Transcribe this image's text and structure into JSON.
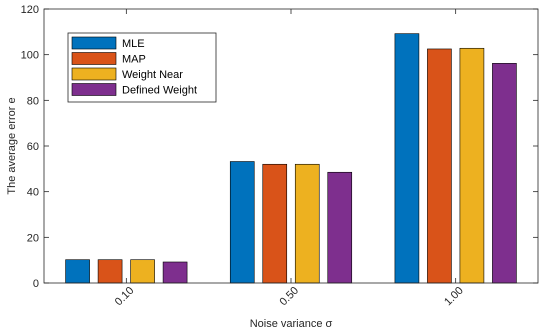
{
  "chart_data": {
    "type": "bar",
    "categories": [
      "0.10",
      "0.50",
      "1.00"
    ],
    "series": [
      {
        "name": "MLE",
        "color": "#0072BD",
        "values": [
          10.2,
          53.2,
          109.2
        ]
      },
      {
        "name": "MAP",
        "color": "#D95319",
        "values": [
          10.2,
          52.0,
          102.5
        ]
      },
      {
        "name": "Weight Near",
        "color": "#EDB120",
        "values": [
          10.2,
          52.0,
          102.8
        ]
      },
      {
        "name": "Defined Weight",
        "color": "#7E2F8E",
        "values": [
          9.2,
          48.5,
          96.2
        ]
      }
    ],
    "xlabel": "Noise variance σ",
    "ylabel": "The average error e",
    "ylim": [
      0,
      120
    ],
    "yticks": [
      0,
      20,
      40,
      60,
      80,
      100,
      120
    ],
    "grid": false,
    "legend": "top-left"
  }
}
